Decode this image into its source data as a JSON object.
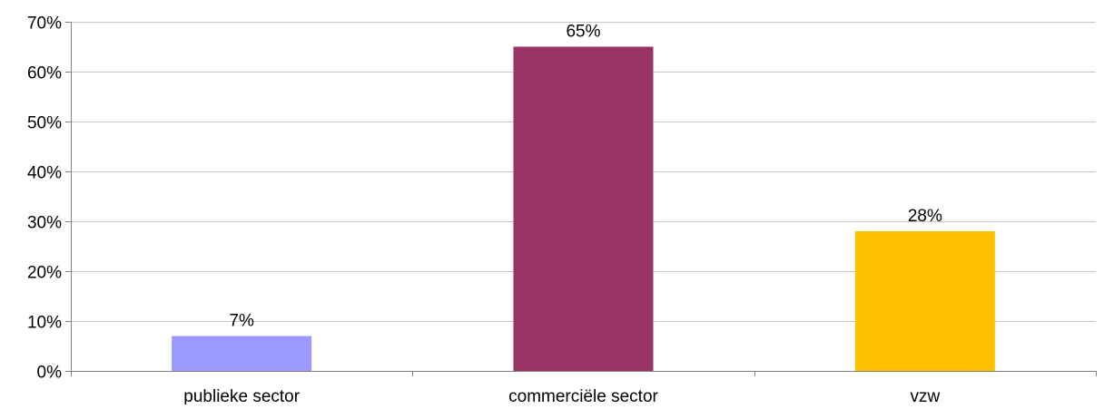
{
  "chart_data": {
    "type": "bar",
    "categories": [
      "publieke sector",
      "commerciële sector",
      "vzw"
    ],
    "values": [
      7,
      65,
      28
    ],
    "data_labels": [
      "7%",
      "65%",
      "28%"
    ],
    "colors": [
      "#9999FF",
      "#993366",
      "#FFC000"
    ],
    "ylim": [
      0,
      70
    ],
    "yticks": [
      0,
      10,
      20,
      30,
      40,
      50,
      60,
      70
    ],
    "ytick_labels": [
      "0%",
      "10%",
      "20%",
      "30%",
      "40%",
      "50%",
      "60%",
      "70%"
    ],
    "grid": true,
    "legend": "none",
    "title": "",
    "xlabel": "",
    "ylabel": ""
  }
}
